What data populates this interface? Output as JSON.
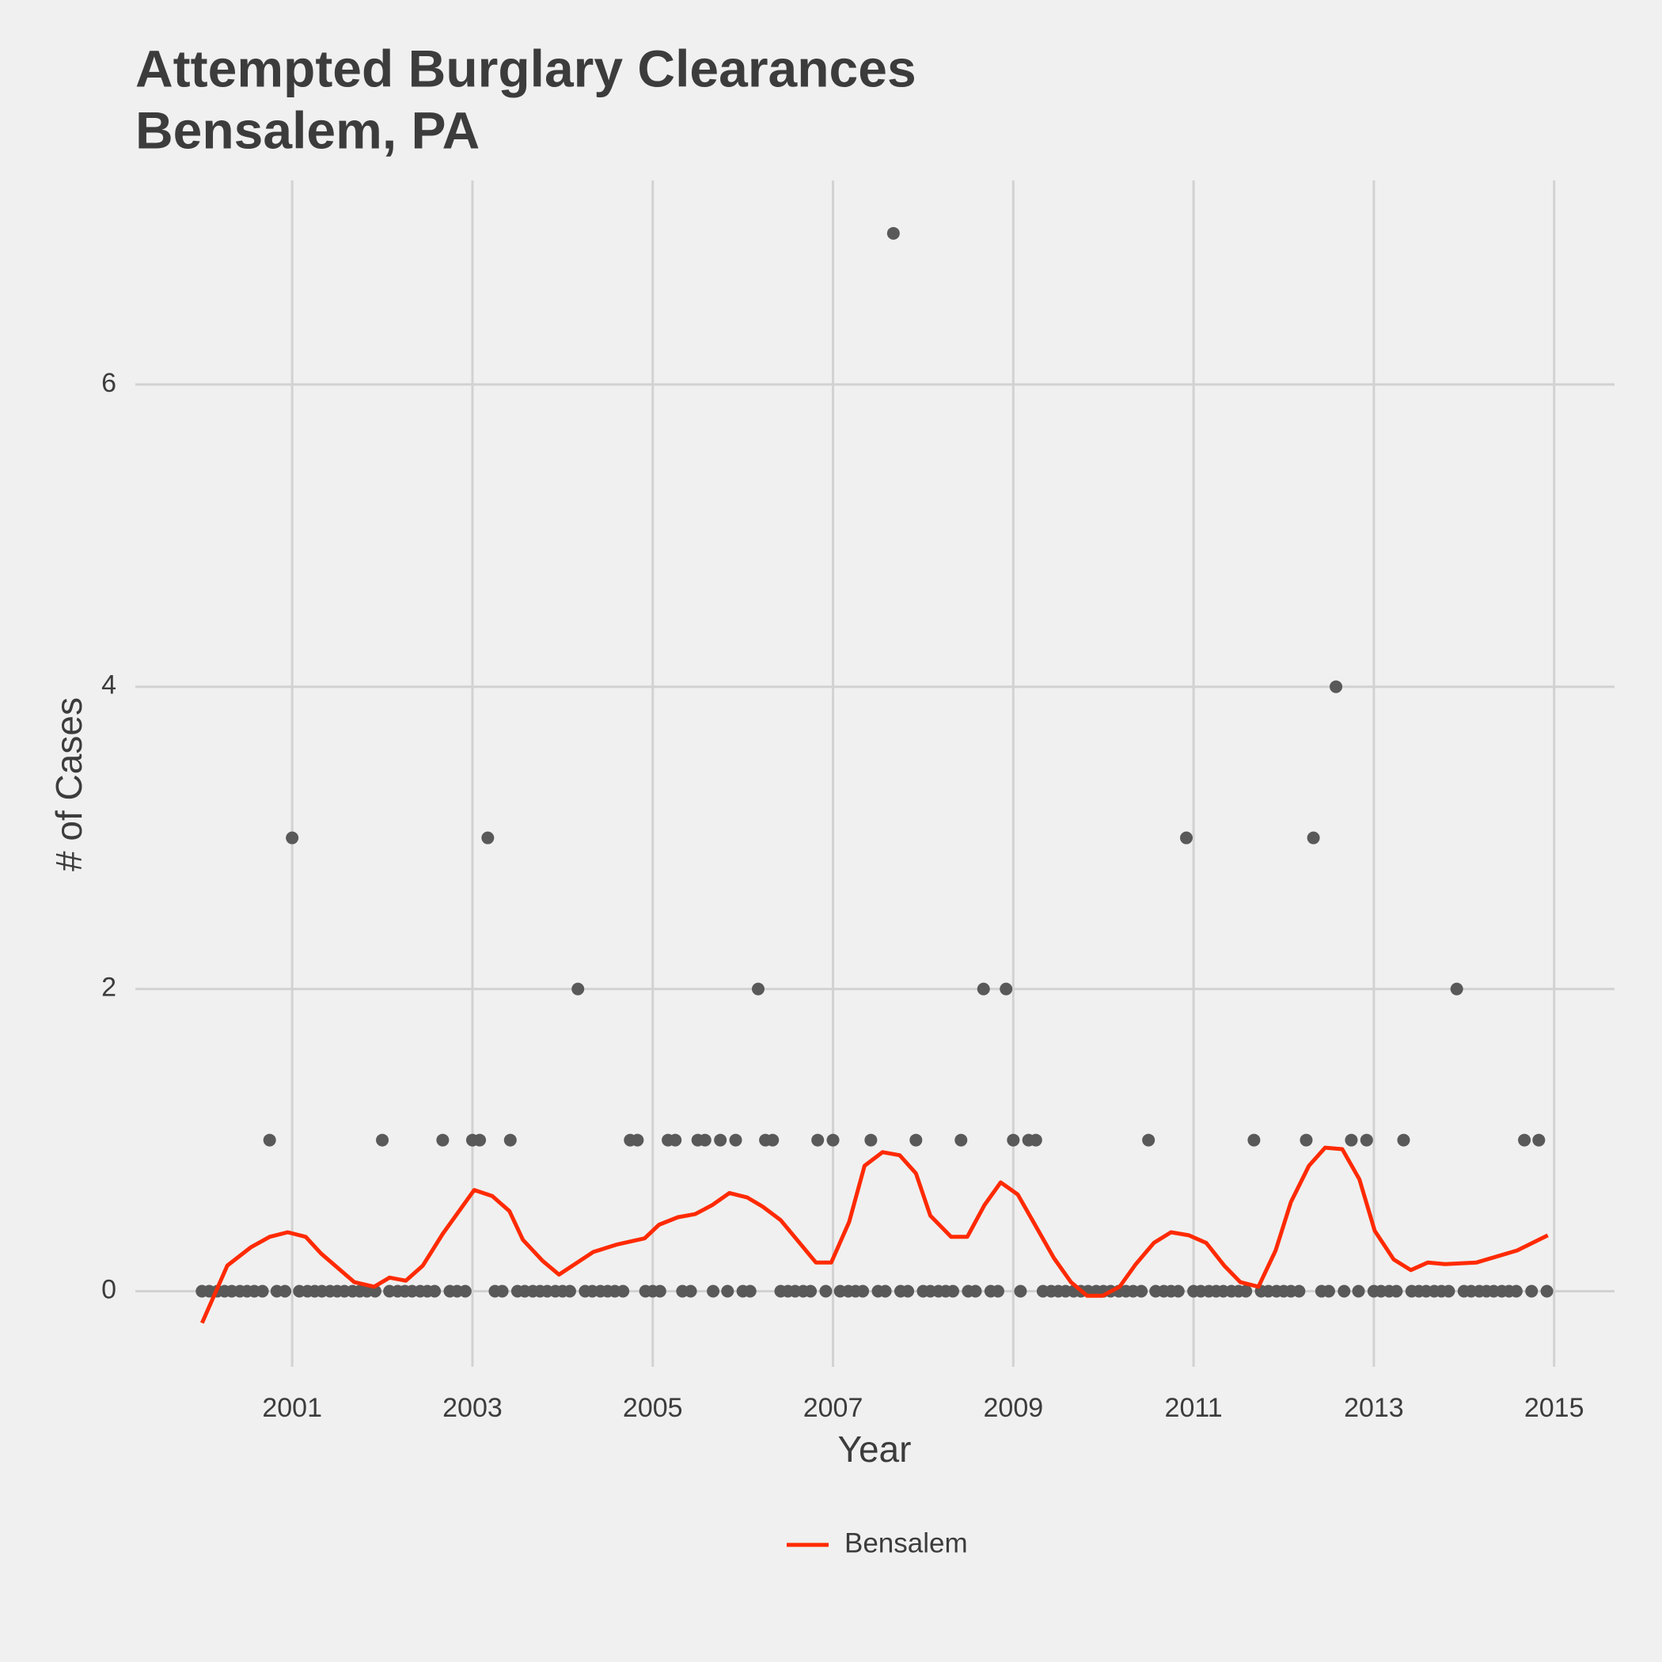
{
  "chart_data": {
    "type": "scatter",
    "title": "Attempted Burglary Clearances",
    "subtitle": "Bensalem, PA",
    "x_label": "Year",
    "y_label": "# of Cases",
    "xlim": [
      1999.26,
      2015.67
    ],
    "ylim": [
      -0.5,
      7.35
    ],
    "xticks": [
      2001,
      2003,
      2005,
      2007,
      2009,
      2011,
      2013,
      2015
    ],
    "yticks": [
      0,
      2,
      4,
      6
    ],
    "grid": true,
    "legend": "bottom",
    "series": [
      {
        "type": "scatter",
        "color": "#595959",
        "x": [
          2000,
          2000.08,
          2000.17,
          2000.25,
          2000.33,
          2000.42,
          2000.5,
          2000.58,
          2000.67,
          2000.75,
          2000.83,
          2000.92,
          2001,
          2001.08,
          2001.17,
          2001.25,
          2001.33,
          2001.42,
          2001.5,
          2001.58,
          2001.67,
          2001.75,
          2001.83,
          2001.92,
          2002,
          2002.08,
          2002.17,
          2002.25,
          2002.33,
          2002.42,
          2002.5,
          2002.58,
          2002.67,
          2002.75,
          2002.83,
          2002.92,
          2003,
          2003.08,
          2003.17,
          2003.25,
          2003.33,
          2003.42,
          2003.5,
          2003.58,
          2003.67,
          2003.75,
          2003.83,
          2003.92,
          2004,
          2004.08,
          2004.17,
          2004.25,
          2004.33,
          2004.42,
          2004.5,
          2004.58,
          2004.67,
          2004.75,
          2004.83,
          2004.92,
          2005,
          2005.08,
          2005.17,
          2005.25,
          2005.33,
          2005.42,
          2005.5,
          2005.58,
          2005.67,
          2005.75,
          2005.83,
          2005.92,
          2006,
          2006.08,
          2006.17,
          2006.25,
          2006.33,
          2006.42,
          2006.5,
          2006.58,
          2006.67,
          2006.75,
          2006.83,
          2006.92,
          2007,
          2007.08,
          2007.17,
          2007.25,
          2007.33,
          2007.42,
          2007.5,
          2007.58,
          2007.67,
          2007.75,
          2007.83,
          2007.92,
          2008,
          2008.08,
          2008.17,
          2008.25,
          2008.33,
          2008.42,
          2008.5,
          2008.58,
          2008.67,
          2008.75,
          2008.83,
          2008.92,
          2009,
          2009.08,
          2009.17,
          2009.25,
          2009.33,
          2009.42,
          2009.5,
          2009.58,
          2009.67,
          2009.75,
          2009.83,
          2009.92,
          2010,
          2010.08,
          2010.17,
          2010.25,
          2010.33,
          2010.42,
          2010.5,
          2010.58,
          2010.67,
          2010.75,
          2010.83,
          2010.92,
          2011,
          2011.08,
          2011.17,
          2011.25,
          2011.33,
          2011.42,
          2011.5,
          2011.58,
          2011.67,
          2011.75,
          2011.83,
          2011.92,
          2012,
          2012.08,
          2012.17,
          2012.25,
          2012.33,
          2012.42,
          2012.5,
          2012.58,
          2012.67,
          2012.75,
          2012.83,
          2012.92,
          2013,
          2013.08,
          2013.17,
          2013.25,
          2013.33,
          2013.42,
          2013.5,
          2013.58,
          2013.67,
          2013.75,
          2013.83,
          2013.92,
          2014,
          2014.08,
          2014.17,
          2014.25,
          2014.33,
          2014.42,
          2014.5,
          2014.58,
          2014.67,
          2014.75,
          2014.83,
          2014.92
        ],
        "values": [
          0,
          0,
          0,
          0,
          0,
          0,
          0,
          0,
          0,
          1,
          0,
          0,
          3,
          0,
          0,
          0,
          0,
          0,
          0,
          0,
          0,
          0,
          0,
          0,
          1,
          0,
          0,
          0,
          0,
          0,
          0,
          0,
          1,
          0,
          0,
          0,
          1,
          1,
          3,
          0,
          0,
          1,
          0,
          0,
          0,
          0,
          0,
          0,
          0,
          0,
          2,
          0,
          0,
          0,
          0,
          0,
          0,
          1,
          1,
          0,
          0,
          0,
          1,
          1,
          0,
          0,
          1,
          1,
          0,
          1,
          0,
          1,
          0,
          0,
          2,
          1,
          1,
          0,
          0,
          0,
          0,
          0,
          1,
          0,
          1,
          0,
          0,
          0,
          0,
          1,
          0,
          0,
          7,
          0,
          0,
          1,
          0,
          0,
          0,
          0,
          0,
          1,
          0,
          0,
          2,
          0,
          0,
          2,
          1,
          0,
          1,
          1,
          0,
          0,
          0,
          0,
          0,
          0,
          0,
          0,
          0,
          0,
          0,
          0,
          0,
          0,
          1,
          0,
          0,
          0,
          0,
          3,
          0,
          0,
          0,
          0,
          0,
          0,
          0,
          0,
          1,
          0,
          0,
          0,
          0,
          0,
          0,
          1,
          3,
          0,
          0,
          4,
          0,
          1,
          0,
          1,
          0,
          0,
          0,
          0,
          1,
          0,
          0,
          0,
          0,
          0,
          0,
          2,
          0,
          0,
          0,
          0,
          0,
          0,
          0,
          0,
          1,
          0,
          1,
          0
        ]
      },
      {
        "type": "line",
        "name": "Bensalem",
        "color": "#ff2a00",
        "x": [
          2000,
          2000.28,
          2000.54,
          2000.75,
          2000.95,
          2001.15,
          2001.32,
          2001.69,
          2001.91,
          2002.08,
          2002.26,
          2002.45,
          2002.67,
          2003.02,
          2003.22,
          2003.41,
          2003.56,
          2003.78,
          2003.96,
          2004.34,
          2004.61,
          2004.91,
          2005.07,
          2005.28,
          2005.47,
          2005.66,
          2005.85,
          2006.05,
          2006.22,
          2006.42,
          2006.81,
          2006.98,
          2007.18,
          2007.35,
          2007.55,
          2007.74,
          2007.92,
          2008.08,
          2008.31,
          2008.49,
          2008.68,
          2008.86,
          2009.05,
          2009.25,
          2009.45,
          2009.64,
          2009.82,
          2009.99,
          2010.18,
          2010.36,
          2010.56,
          2010.75,
          2010.95,
          2011.14,
          2011.34,
          2011.52,
          2011.72,
          2011.91,
          2012.08,
          2012.28,
          2012.46,
          2012.65,
          2012.84,
          2013.01,
          2013.22,
          2013.41,
          2013.6,
          2013.79,
          2014.14,
          2014.59,
          2014.93
        ],
        "values": [
          -0.21,
          0.17,
          0.29,
          0.36,
          0.39,
          0.36,
          0.25,
          0.06,
          0.03,
          0.09,
          0.07,
          0.17,
          0.38,
          0.67,
          0.63,
          0.53,
          0.34,
          0.2,
          0.11,
          0.26,
          0.31,
          0.35,
          0.44,
          0.49,
          0.51,
          0.57,
          0.65,
          0.62,
          0.56,
          0.47,
          0.19,
          0.19,
          0.46,
          0.83,
          0.92,
          0.9,
          0.78,
          0.5,
          0.36,
          0.36,
          0.57,
          0.72,
          0.64,
          0.43,
          0.22,
          0.06,
          -0.03,
          -0.03,
          0.03,
          0.18,
          0.32,
          0.39,
          0.37,
          0.32,
          0.17,
          0.06,
          0.03,
          0.27,
          0.59,
          0.83,
          0.95,
          0.94,
          0.74,
          0.4,
          0.21,
          0.14,
          0.19,
          0.18,
          0.19,
          0.27,
          0.37
        ]
      }
    ]
  }
}
